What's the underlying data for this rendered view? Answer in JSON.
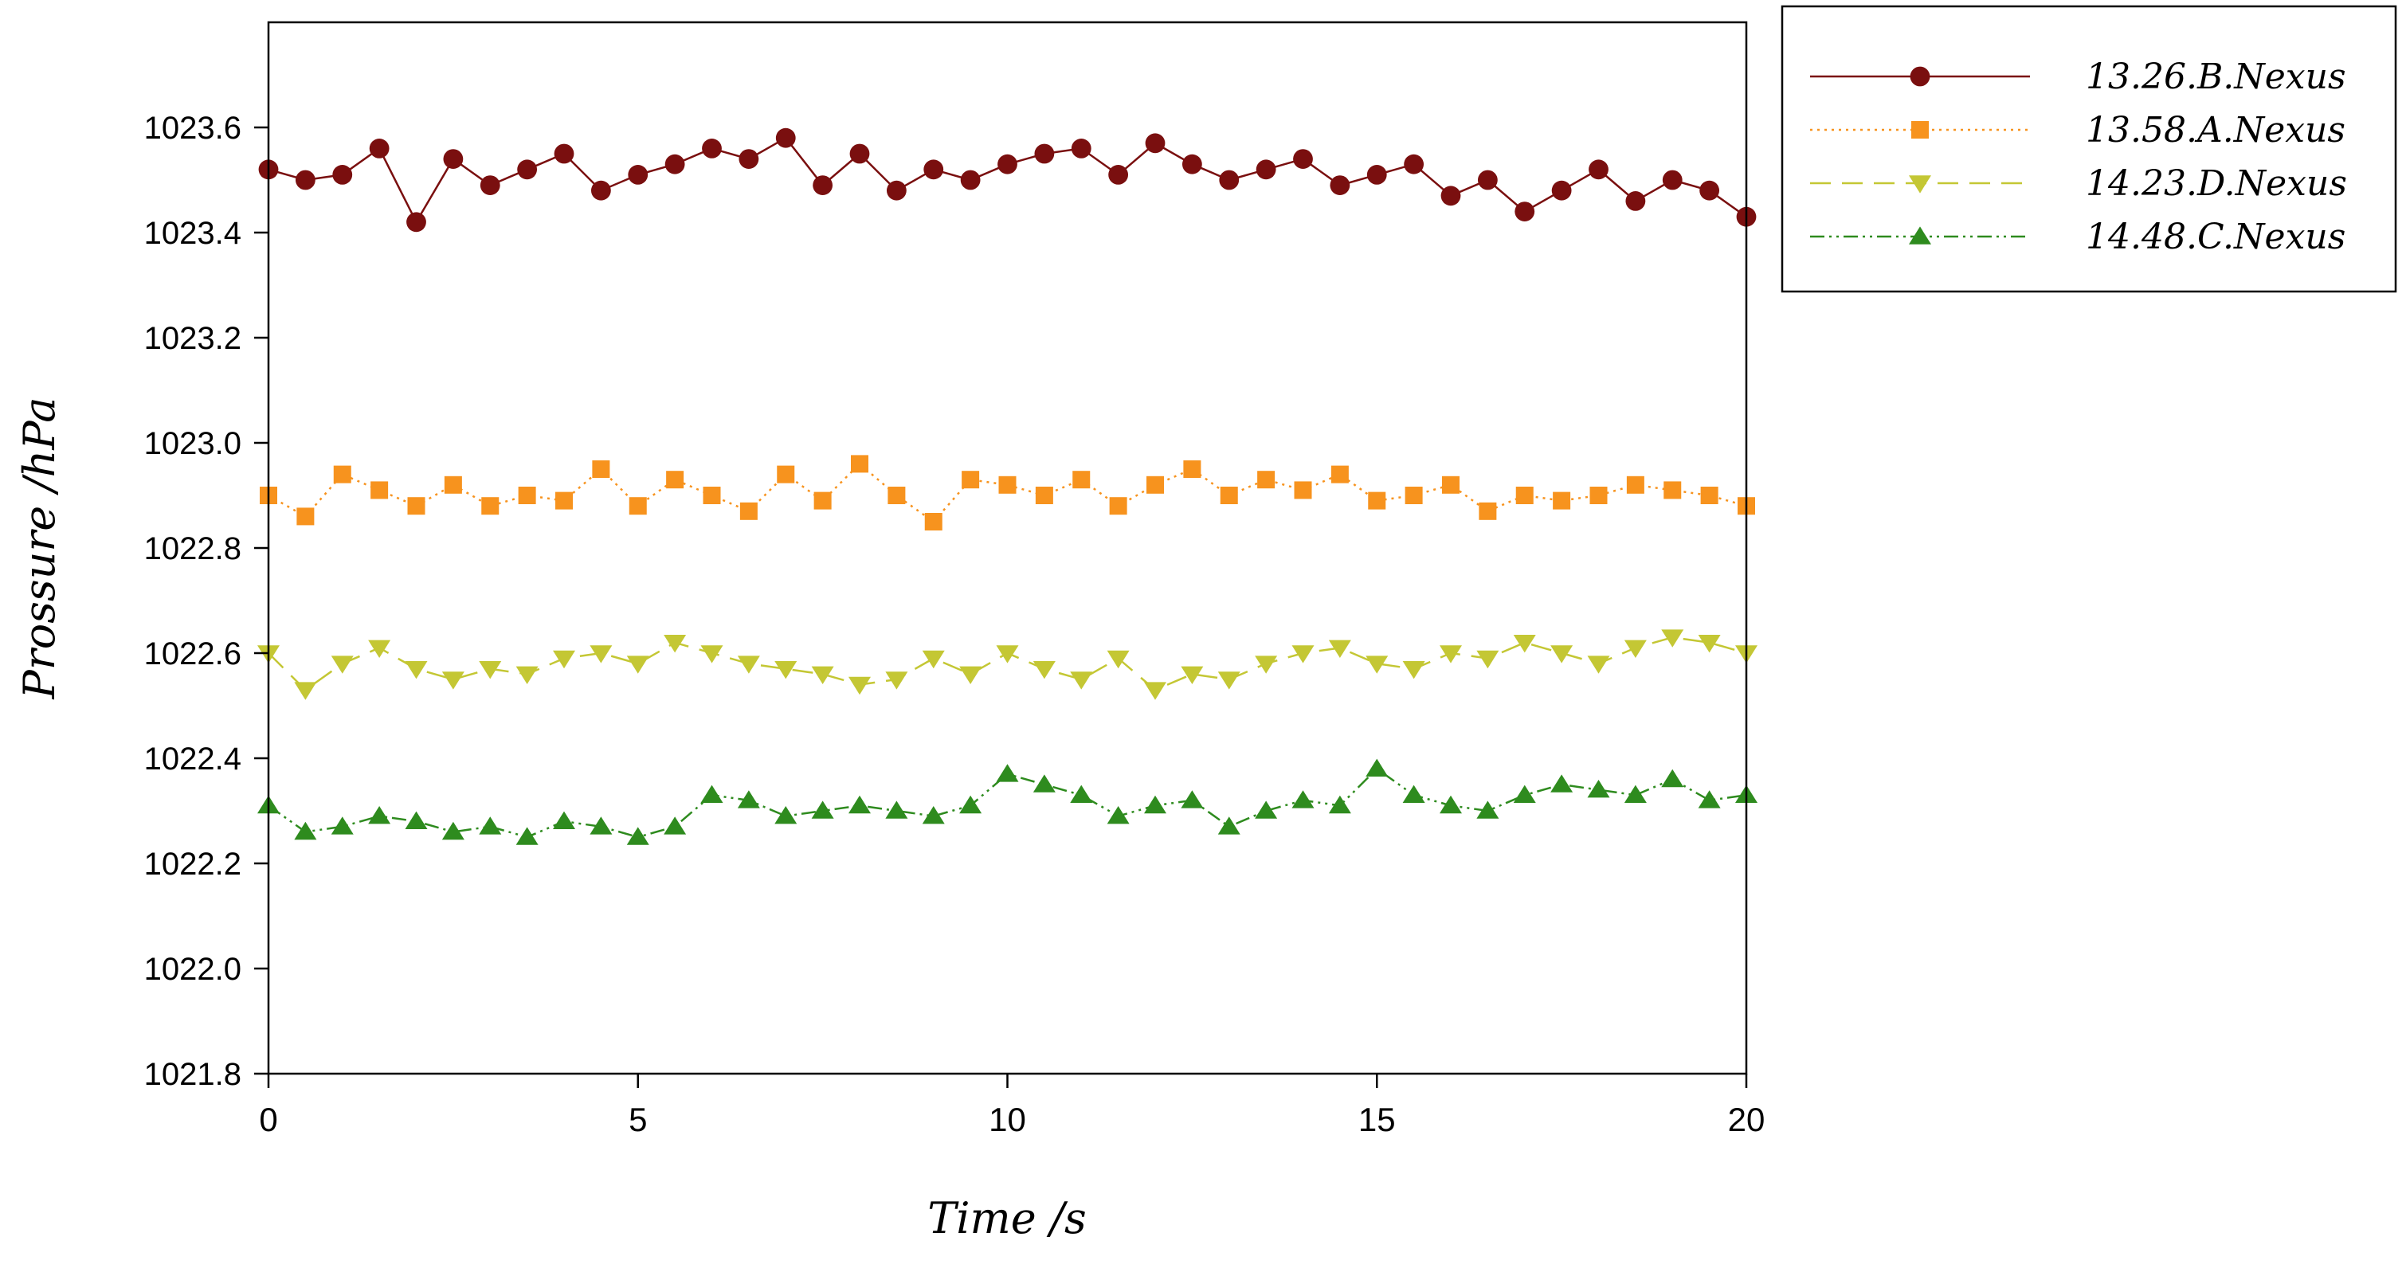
{
  "chart_data": {
    "type": "line",
    "title": "",
    "xlabel": "Time /s",
    "ylabel": "Prossure /hPa",
    "xlim": [
      0,
      20
    ],
    "ylim": [
      1021.8,
      1023.8
    ],
    "xticks": [
      0,
      5,
      10,
      15,
      20
    ],
    "xtick_labels": [
      "0",
      "5",
      "10",
      "15",
      "20"
    ],
    "yticks": [
      1021.8,
      1022.0,
      1022.2,
      1022.4,
      1022.6,
      1022.8,
      1023.0,
      1023.2,
      1023.4,
      1023.6
    ],
    "ytick_labels": [
      "1021.8",
      "1022.0",
      "1022.2",
      "1022.4",
      "1022.6",
      "1022.8",
      "1023.0",
      "1023.2",
      "1023.4",
      "1023.6"
    ],
    "grid": false,
    "legend_position": "outside-top-right",
    "x": [
      0,
      0.5,
      1,
      1.5,
      2,
      2.5,
      3,
      3.5,
      4,
      4.5,
      5,
      5.5,
      6,
      6.5,
      7,
      7.5,
      8,
      8.5,
      9,
      9.5,
      10,
      10.5,
      11,
      11.5,
      12,
      12.5,
      13,
      13.5,
      14,
      14.5,
      15,
      15.5,
      16,
      16.5,
      17,
      17.5,
      18,
      18.5,
      19,
      19.5,
      20
    ],
    "series": [
      {
        "name": "13.26.B.Nexus",
        "color": "#7a0f0f",
        "marker": "circle",
        "line_style": "solid",
        "values": [
          1023.52,
          1023.5,
          1023.51,
          1023.56,
          1023.42,
          1023.54,
          1023.49,
          1023.52,
          1023.55,
          1023.48,
          1023.51,
          1023.53,
          1023.56,
          1023.54,
          1023.58,
          1023.49,
          1023.55,
          1023.48,
          1023.52,
          1023.5,
          1023.53,
          1023.55,
          1023.56,
          1023.51,
          1023.57,
          1023.53,
          1023.5,
          1023.52,
          1023.54,
          1023.49,
          1023.51,
          1023.53,
          1023.47,
          1023.5,
          1023.44,
          1023.48,
          1023.52,
          1023.46,
          1023.5,
          1023.48,
          1023.43
        ]
      },
      {
        "name": "13.58.A.Nexus",
        "color": "#f7931e",
        "marker": "square",
        "line_style": "dotted",
        "values": [
          1022.9,
          1022.86,
          1022.94,
          1022.91,
          1022.88,
          1022.92,
          1022.88,
          1022.9,
          1022.89,
          1022.95,
          1022.88,
          1022.93,
          1022.9,
          1022.87,
          1022.94,
          1022.89,
          1022.96,
          1022.9,
          1022.85,
          1022.93,
          1022.92,
          1022.9,
          1022.93,
          1022.88,
          1022.92,
          1022.95,
          1022.9,
          1022.93,
          1022.91,
          1022.94,
          1022.89,
          1022.9,
          1022.92,
          1022.87,
          1022.9,
          1022.89,
          1022.9,
          1022.92,
          1022.91,
          1022.9,
          1022.88
        ]
      },
      {
        "name": "14.23.D.Nexus",
        "color": "#c4c734",
        "marker": "triangle-down",
        "line_style": "dashed",
        "values": [
          1022.6,
          1022.53,
          1022.58,
          1022.61,
          1022.57,
          1022.55,
          1022.57,
          1022.56,
          1022.59,
          1022.6,
          1022.58,
          1022.62,
          1022.6,
          1022.58,
          1022.57,
          1022.56,
          1022.54,
          1022.55,
          1022.59,
          1022.56,
          1022.6,
          1022.57,
          1022.55,
          1022.59,
          1022.53,
          1022.56,
          1022.55,
          1022.58,
          1022.6,
          1022.61,
          1022.58,
          1022.57,
          1022.6,
          1022.59,
          1022.62,
          1022.6,
          1022.58,
          1022.61,
          1022.63,
          1022.62,
          1022.6
        ]
      },
      {
        "name": "14.48.C.Nexus",
        "color": "#2e8b1e",
        "marker": "triangle-up",
        "line_style": "dash-dot-dot",
        "values": [
          1022.31,
          1022.26,
          1022.27,
          1022.29,
          1022.28,
          1022.26,
          1022.27,
          1022.25,
          1022.28,
          1022.27,
          1022.25,
          1022.27,
          1022.33,
          1022.32,
          1022.29,
          1022.3,
          1022.31,
          1022.3,
          1022.29,
          1022.31,
          1022.37,
          1022.35,
          1022.33,
          1022.29,
          1022.31,
          1022.32,
          1022.27,
          1022.3,
          1022.32,
          1022.31,
          1022.38,
          1022.33,
          1022.31,
          1022.3,
          1022.33,
          1022.35,
          1022.34,
          1022.33,
          1022.36,
          1022.32,
          1022.33
        ]
      }
    ]
  }
}
